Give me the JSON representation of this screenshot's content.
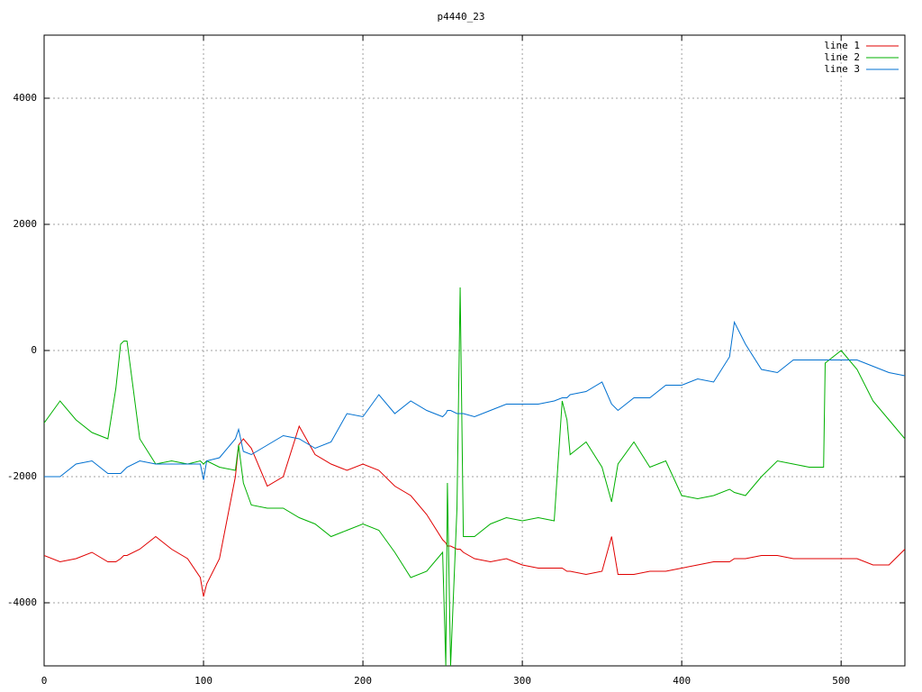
{
  "chart_data": {
    "type": "line",
    "title": "p4440_23",
    "x": [
      0,
      10,
      20,
      30,
      40,
      45,
      48,
      50,
      52,
      60,
      70,
      80,
      90,
      98,
      100,
      102,
      110,
      120,
      122,
      125,
      130,
      140,
      150,
      160,
      170,
      180,
      190,
      200,
      210,
      220,
      230,
      240,
      250,
      252,
      253,
      255,
      259,
      261,
      263,
      270,
      280,
      290,
      300,
      310,
      320,
      325,
      328,
      330,
      340,
      350,
      356,
      360,
      370,
      380,
      390,
      400,
      410,
      420,
      430,
      433,
      440,
      450,
      460,
      470,
      480,
      489,
      490,
      500,
      510,
      520,
      530,
      540
    ],
    "series": [
      {
        "name": "line 1",
        "color": "#e00000",
        "values": [
          -3250,
          -3350,
          -3300,
          -3200,
          -3350,
          -3350,
          -3300,
          -3250,
          -3250,
          -3150,
          -2950,
          -3150,
          -3300,
          -3600,
          -3900,
          -3700,
          -3300,
          -2000,
          -1500,
          -1400,
          -1550,
          -2150,
          -2000,
          -1200,
          -1650,
          -1800,
          -1900,
          -1800,
          -1900,
          -2150,
          -2300,
          -2600,
          -3000,
          -3050,
          -3100,
          -3100,
          -3150,
          -3150,
          -3200,
          -3300,
          -3350,
          -3300,
          -3400,
          -3450,
          -3450,
          -3450,
          -3500,
          -3500,
          -3550,
          -3500,
          -2950,
          -3550,
          -3550,
          -3500,
          -3500,
          -3450,
          -3400,
          -3350,
          -3350,
          -3300,
          -3300,
          -3250,
          -3250,
          -3300,
          -3300,
          -3300,
          -3300,
          -3300,
          -3300,
          -3400,
          -3400,
          -3150
        ]
      },
      {
        "name": "line 2",
        "color": "#00b000",
        "values": [
          -1150,
          -800,
          -1100,
          -1300,
          -1400,
          -600,
          100,
          150,
          150,
          -1400,
          -1800,
          -1750,
          -1800,
          -1750,
          -1800,
          -1750,
          -1850,
          -1900,
          -1500,
          -2100,
          -2450,
          -2500,
          -2500,
          -2650,
          -2750,
          -2950,
          -2850,
          -2750,
          -2850,
          -3200,
          -3600,
          -3500,
          -3200,
          -5000,
          -2100,
          -5000,
          -2500,
          1000,
          -2950,
          -2950,
          -2750,
          -2650,
          -2700,
          -2650,
          -2700,
          -800,
          -1100,
          -1650,
          -1450,
          -1850,
          -2400,
          -1800,
          -1450,
          -1850,
          -1750,
          -2300,
          -2350,
          -2300,
          -2200,
          -2250,
          -2300,
          -2000,
          -1750,
          -1800,
          -1850,
          -1850,
          -200,
          0,
          -300,
          -800,
          -1100,
          -1400
        ]
      },
      {
        "name": "line 3",
        "color": "#0070d0",
        "values": [
          -2000,
          -2000,
          -1800,
          -1750,
          -1950,
          -1950,
          -1950,
          -1900,
          -1850,
          -1750,
          -1800,
          -1800,
          -1800,
          -1800,
          -2050,
          -1750,
          -1700,
          -1400,
          -1250,
          -1600,
          -1650,
          -1500,
          -1350,
          -1400,
          -1550,
          -1450,
          -1000,
          -1050,
          -700,
          -1000,
          -800,
          -950,
          -1050,
          -1000,
          -950,
          -950,
          -1000,
          -1000,
          -1000,
          -1050,
          -950,
          -850,
          -850,
          -850,
          -800,
          -750,
          -750,
          -700,
          -650,
          -500,
          -850,
          -950,
          -750,
          -750,
          -550,
          -550,
          -450,
          -500,
          -100,
          450,
          100,
          -300,
          -350,
          -150,
          -150,
          -150,
          -150,
          -150,
          -150,
          -250,
          -350,
          -400
        ]
      }
    ],
    "xlim": [
      0,
      540
    ],
    "xticks": [
      0,
      100,
      200,
      300,
      400,
      500
    ],
    "ylim": [
      -5000,
      5000
    ],
    "yticks": [
      -4000,
      -2000,
      0,
      2000,
      4000
    ],
    "grid": true,
    "legend": "top-right"
  }
}
